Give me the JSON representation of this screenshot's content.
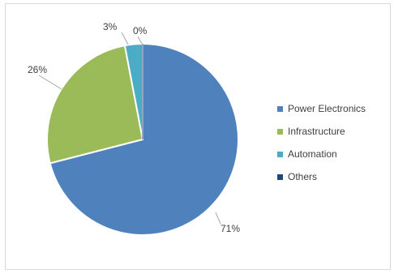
{
  "chart_data": {
    "type": "pie",
    "categories": [
      "Power Electronics",
      "Infrastructure",
      "Automation",
      "Others"
    ],
    "values": [
      71,
      26,
      3,
      0
    ],
    "data_labels": [
      "71%",
      "26%",
      "3%",
      "0%"
    ],
    "colors": [
      "#4f81bd",
      "#9bbb59",
      "#4bacc6",
      "#1f497d"
    ],
    "legend_position": "right",
    "start_angle_deg": 0,
    "direction": "clockwise"
  }
}
